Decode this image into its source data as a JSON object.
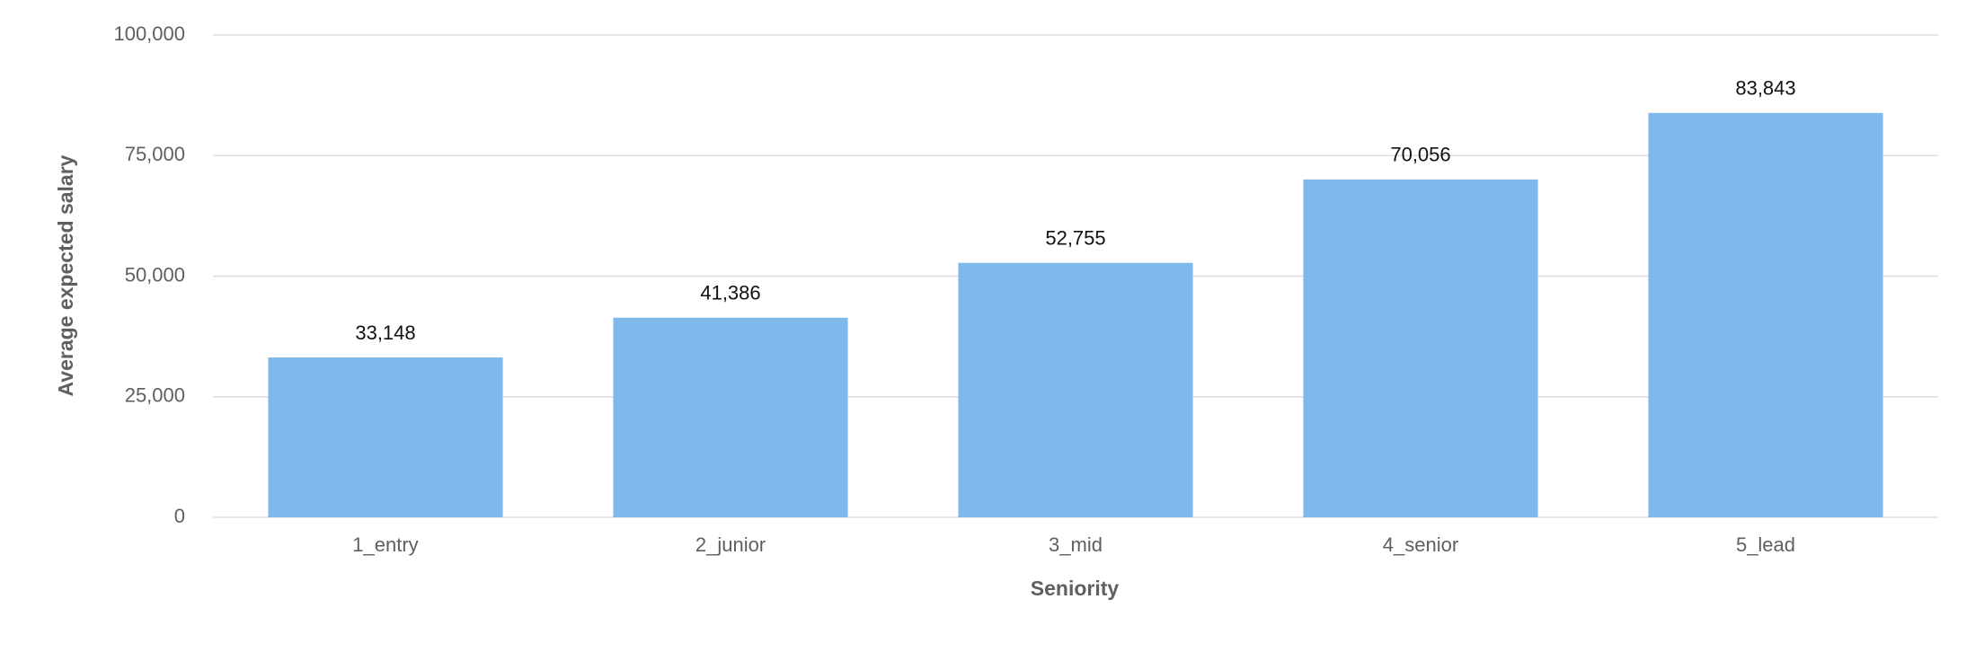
{
  "chart_data": {
    "type": "bar",
    "x_label": "Seniority",
    "y_label": "Average expected salary",
    "categories": [
      "1_entry",
      "2_junior",
      "3_mid",
      "4_senior",
      "5_lead"
    ],
    "values": [
      33148,
      41386,
      52755,
      70056,
      83843
    ],
    "value_labels": [
      "33,148",
      "41,386",
      "52,755",
      "70,056",
      "83,843"
    ],
    "color": "#7fb9eb",
    "ylim": [
      0,
      100000
    ],
    "yticks": [
      0,
      {
        "value": 25000,
        "label": "25,000"
      },
      {
        "value": 50000,
        "label": "50,000"
      },
      {
        "value": 75000,
        "label": "75,000"
      },
      {
        "value": 100000,
        "label": "100,000"
      }
    ],
    "grid": true
  }
}
